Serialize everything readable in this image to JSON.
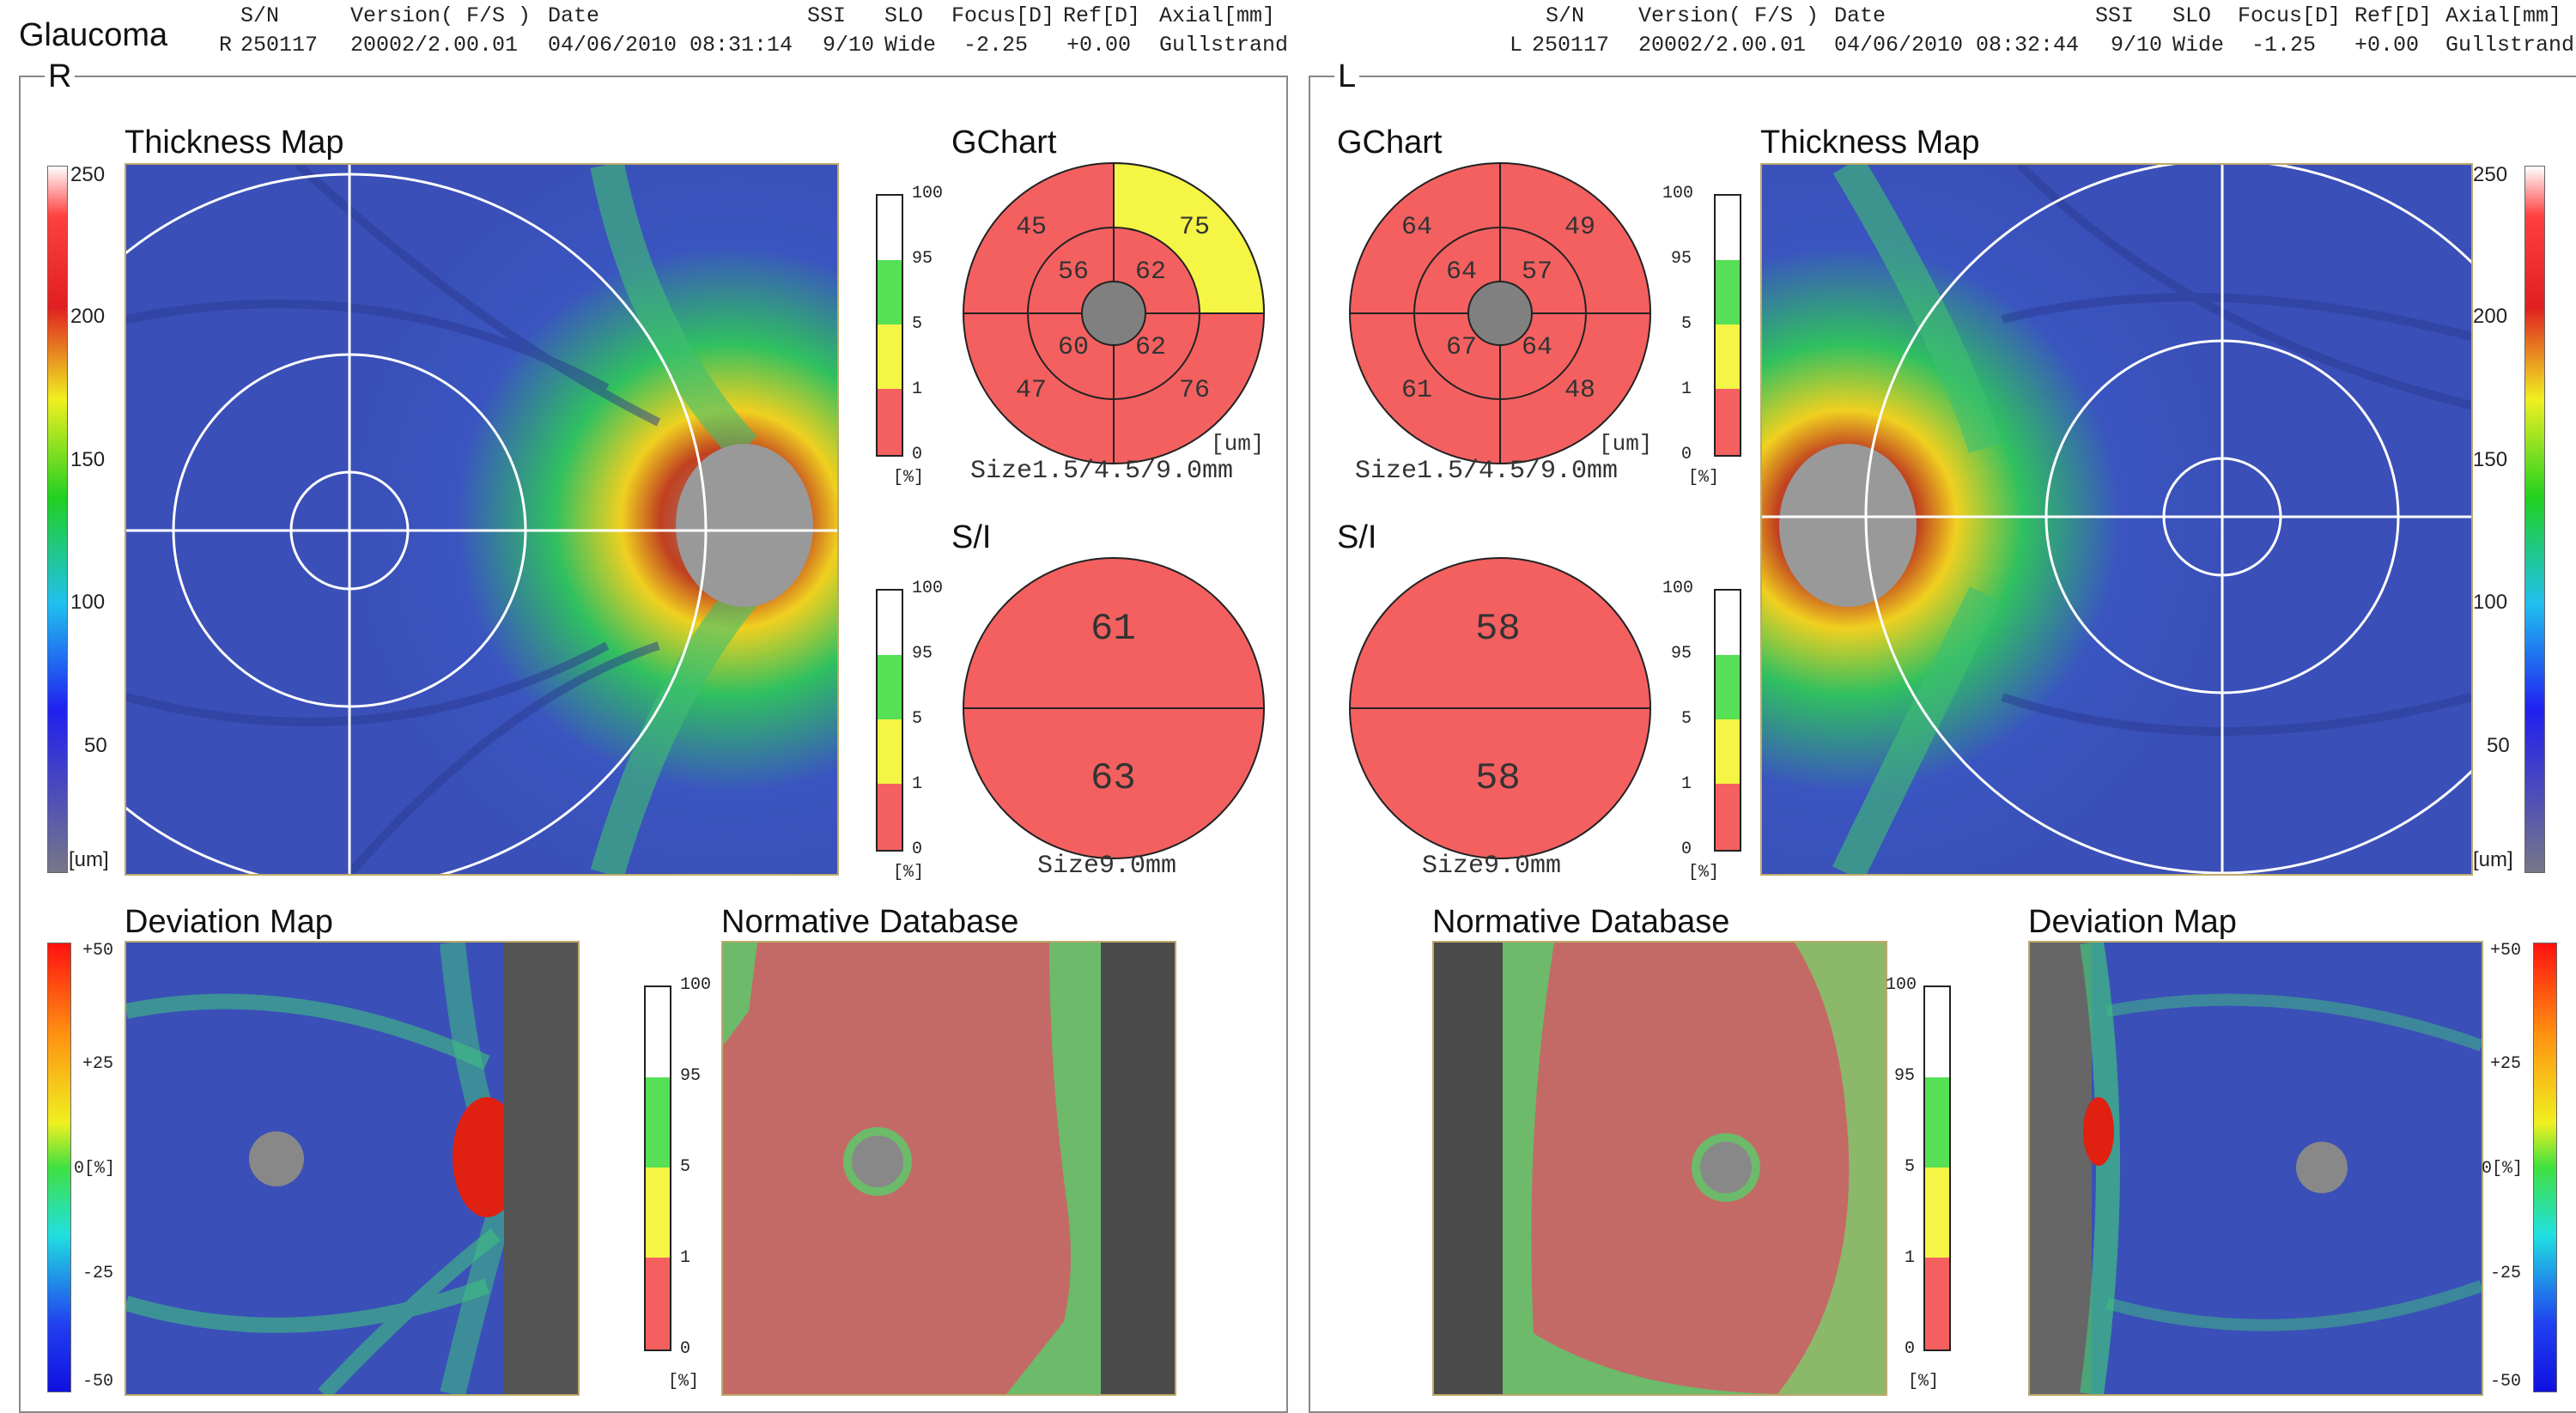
{
  "report_title": "Glaucoma",
  "header": {
    "cols": [
      "S/N",
      "Version( F/S )",
      "Date",
      "SSI",
      "SLO",
      "Focus[D]",
      "Ref[D]",
      "Axial[mm]"
    ],
    "right_eye": {
      "eye": "R",
      "sn": "250117",
      "version": "20002/2.00.01",
      "date": "04/06/2010 08:31:14",
      "ssi": "9/10",
      "slo": "Wide",
      "focus": "-2.25",
      "ref": "+0.00",
      "axial": "Gullstrand"
    },
    "left_eye": {
      "eye": "L",
      "sn": "250117",
      "version": "20002/2.00.01",
      "date": "04/06/2010 08:32:44",
      "ssi": "9/10",
      "slo": "Wide",
      "focus": "-1.25",
      "ref": "+0.00",
      "axial": "Gullstrand"
    }
  },
  "thickness_scale": {
    "ticks": [
      "250",
      "200",
      "150",
      "100",
      "50"
    ],
    "unit": "[um]"
  },
  "deviation_scale": {
    "ticks": [
      "+50",
      "+25",
      "0[%]",
      "-25",
      "-50"
    ]
  },
  "percent_scale": {
    "ticks": [
      "100",
      "95",
      "5",
      "1",
      "0"
    ],
    "unit": "[%]"
  },
  "right": {
    "label": "R",
    "thickness_map_title": "Thickness Map",
    "gchart": {
      "title": "GChart",
      "outer": {
        "upper_left": "45",
        "upper_right": "75",
        "lower_left": "47",
        "lower_right": "76"
      },
      "inner": {
        "upper_left": "56",
        "upper_right": "62",
        "lower_left": "60",
        "lower_right": "62"
      },
      "unit": "[um]",
      "size": "Size1.5/4.5/9.0mm"
    },
    "si": {
      "title": "S/I",
      "superior": "61",
      "inferior": "63",
      "size": "Size9.0mm"
    },
    "deviation_map_title": "Deviation Map",
    "normative_title": "Normative Database"
  },
  "left": {
    "label": "L",
    "thickness_map_title": "Thickness Map",
    "gchart": {
      "title": "GChart",
      "outer": {
        "upper_left": "64",
        "upper_right": "49",
        "lower_left": "61",
        "lower_right": "48"
      },
      "inner": {
        "upper_left": "64",
        "upper_right": "57",
        "lower_left": "67",
        "lower_right": "64"
      },
      "unit": "[um]",
      "size": "Size1.5/4.5/9.0mm"
    },
    "si": {
      "title": "S/I",
      "superior": "58",
      "inferior": "58",
      "size": "Size9.0mm"
    },
    "deviation_map_title": "Deviation Map",
    "normative_title": "Normative Database"
  },
  "colors": {
    "abnormal_red": "#f46060",
    "borderline_yellow": "#f5f545",
    "normal_green": "#55e055",
    "superior_white": "#ffffff",
    "map_blue": "#3a4fb8"
  }
}
